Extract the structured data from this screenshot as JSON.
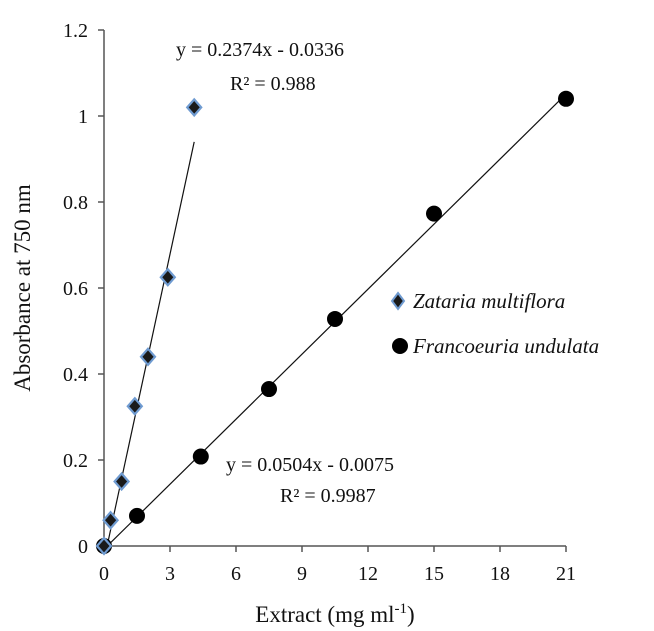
{
  "chart_data": {
    "type": "scatter",
    "xlabel": "Extract (mg ml",
    "xlabel_sup": "-1",
    "xlabel_end": ")",
    "ylabel": "Absorbance at 750 nm",
    "xlim": [
      0,
      21
    ],
    "ylim": [
      0,
      1.2
    ],
    "xticks": [
      "0",
      "3",
      "6",
      "9",
      "12",
      "15",
      "18",
      "21"
    ],
    "yticks": [
      "0",
      "0.2",
      "0.4",
      "0.6",
      "0.8",
      "1",
      "1.2"
    ],
    "grid": false,
    "legend_position": "center-right",
    "series": [
      {
        "name": "Zataria multiflora",
        "marker": "diamond",
        "marker_fill": "#1a1a1a",
        "marker_edge": "#6f9bd1",
        "points": [
          {
            "x": 0.0,
            "y": 0.0
          },
          {
            "x": 0.3,
            "y": 0.06
          },
          {
            "x": 0.8,
            "y": 0.15
          },
          {
            "x": 1.4,
            "y": 0.325
          },
          {
            "x": 2.0,
            "y": 0.44
          },
          {
            "x": 2.9,
            "y": 0.625
          },
          {
            "x": 4.1,
            "y": 1.02
          }
        ],
        "trendline": {
          "slope": 0.2374,
          "intercept": -0.0336,
          "x_range": [
            0.14,
            4.1
          ]
        },
        "equation": "y = 0.2374x  - 0.0336",
        "r2": "R² = 0.988"
      },
      {
        "name": "Francoeuria undulata",
        "marker": "circle",
        "marker_fill": "#000000",
        "points": [
          {
            "x": 0.0,
            "y": 0.0
          },
          {
            "x": 1.5,
            "y": 0.07
          },
          {
            "x": 4.4,
            "y": 0.208
          },
          {
            "x": 7.5,
            "y": 0.365
          },
          {
            "x": 10.5,
            "y": 0.528
          },
          {
            "x": 15.0,
            "y": 0.773
          },
          {
            "x": 21.0,
            "y": 1.04
          }
        ],
        "trendline": {
          "slope": 0.0504,
          "intercept": -0.0075,
          "x_range": [
            0.15,
            21.0
          ]
        },
        "equation": "y = 0.0504x  - 0.0075",
        "r2": "R² = 0.9987"
      }
    ]
  }
}
